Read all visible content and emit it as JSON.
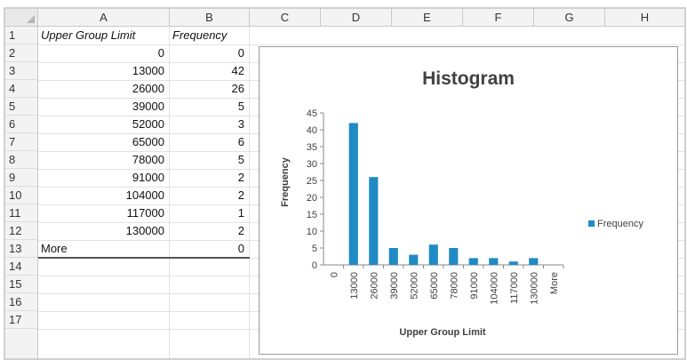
{
  "columns": [
    "A",
    "B",
    "C",
    "D",
    "E",
    "F",
    "G",
    "H"
  ],
  "rows": [
    "1",
    "2",
    "3",
    "4",
    "5",
    "6",
    "7",
    "8",
    "9",
    "10",
    "11",
    "12",
    "13",
    "14",
    "15",
    "16",
    "17"
  ],
  "table": {
    "header": {
      "a": "Upper Group Limit",
      "b": "Frequency"
    },
    "rows": [
      {
        "a": "0",
        "b": "0"
      },
      {
        "a": "13000",
        "b": "42"
      },
      {
        "a": "26000",
        "b": "26"
      },
      {
        "a": "39000",
        "b": "5"
      },
      {
        "a": "52000",
        "b": "3"
      },
      {
        "a": "65000",
        "b": "6"
      },
      {
        "a": "78000",
        "b": "5"
      },
      {
        "a": "91000",
        "b": "2"
      },
      {
        "a": "104000",
        "b": "2"
      },
      {
        "a": "117000",
        "b": "1"
      },
      {
        "a": "130000",
        "b": "2"
      },
      {
        "a": "More",
        "b": "0"
      }
    ]
  },
  "chart_data": {
    "type": "bar",
    "title": "Histogram",
    "xlabel": "Upper Group Limit",
    "ylabel": "Frequency",
    "categories": [
      "0",
      "13000",
      "26000",
      "39000",
      "52000",
      "65000",
      "78000",
      "91000",
      "104000",
      "117000",
      "130000",
      "More"
    ],
    "series": [
      {
        "name": "Frequency",
        "values": [
          0,
          42,
          26,
          5,
          3,
          6,
          5,
          2,
          2,
          1,
          2,
          0
        ],
        "color": "#1f8ac4"
      }
    ],
    "ylim": [
      0,
      45
    ],
    "yticks": [
      0,
      5,
      10,
      15,
      20,
      25,
      30,
      35,
      40,
      45
    ],
    "legend": "right",
    "grid": false
  }
}
